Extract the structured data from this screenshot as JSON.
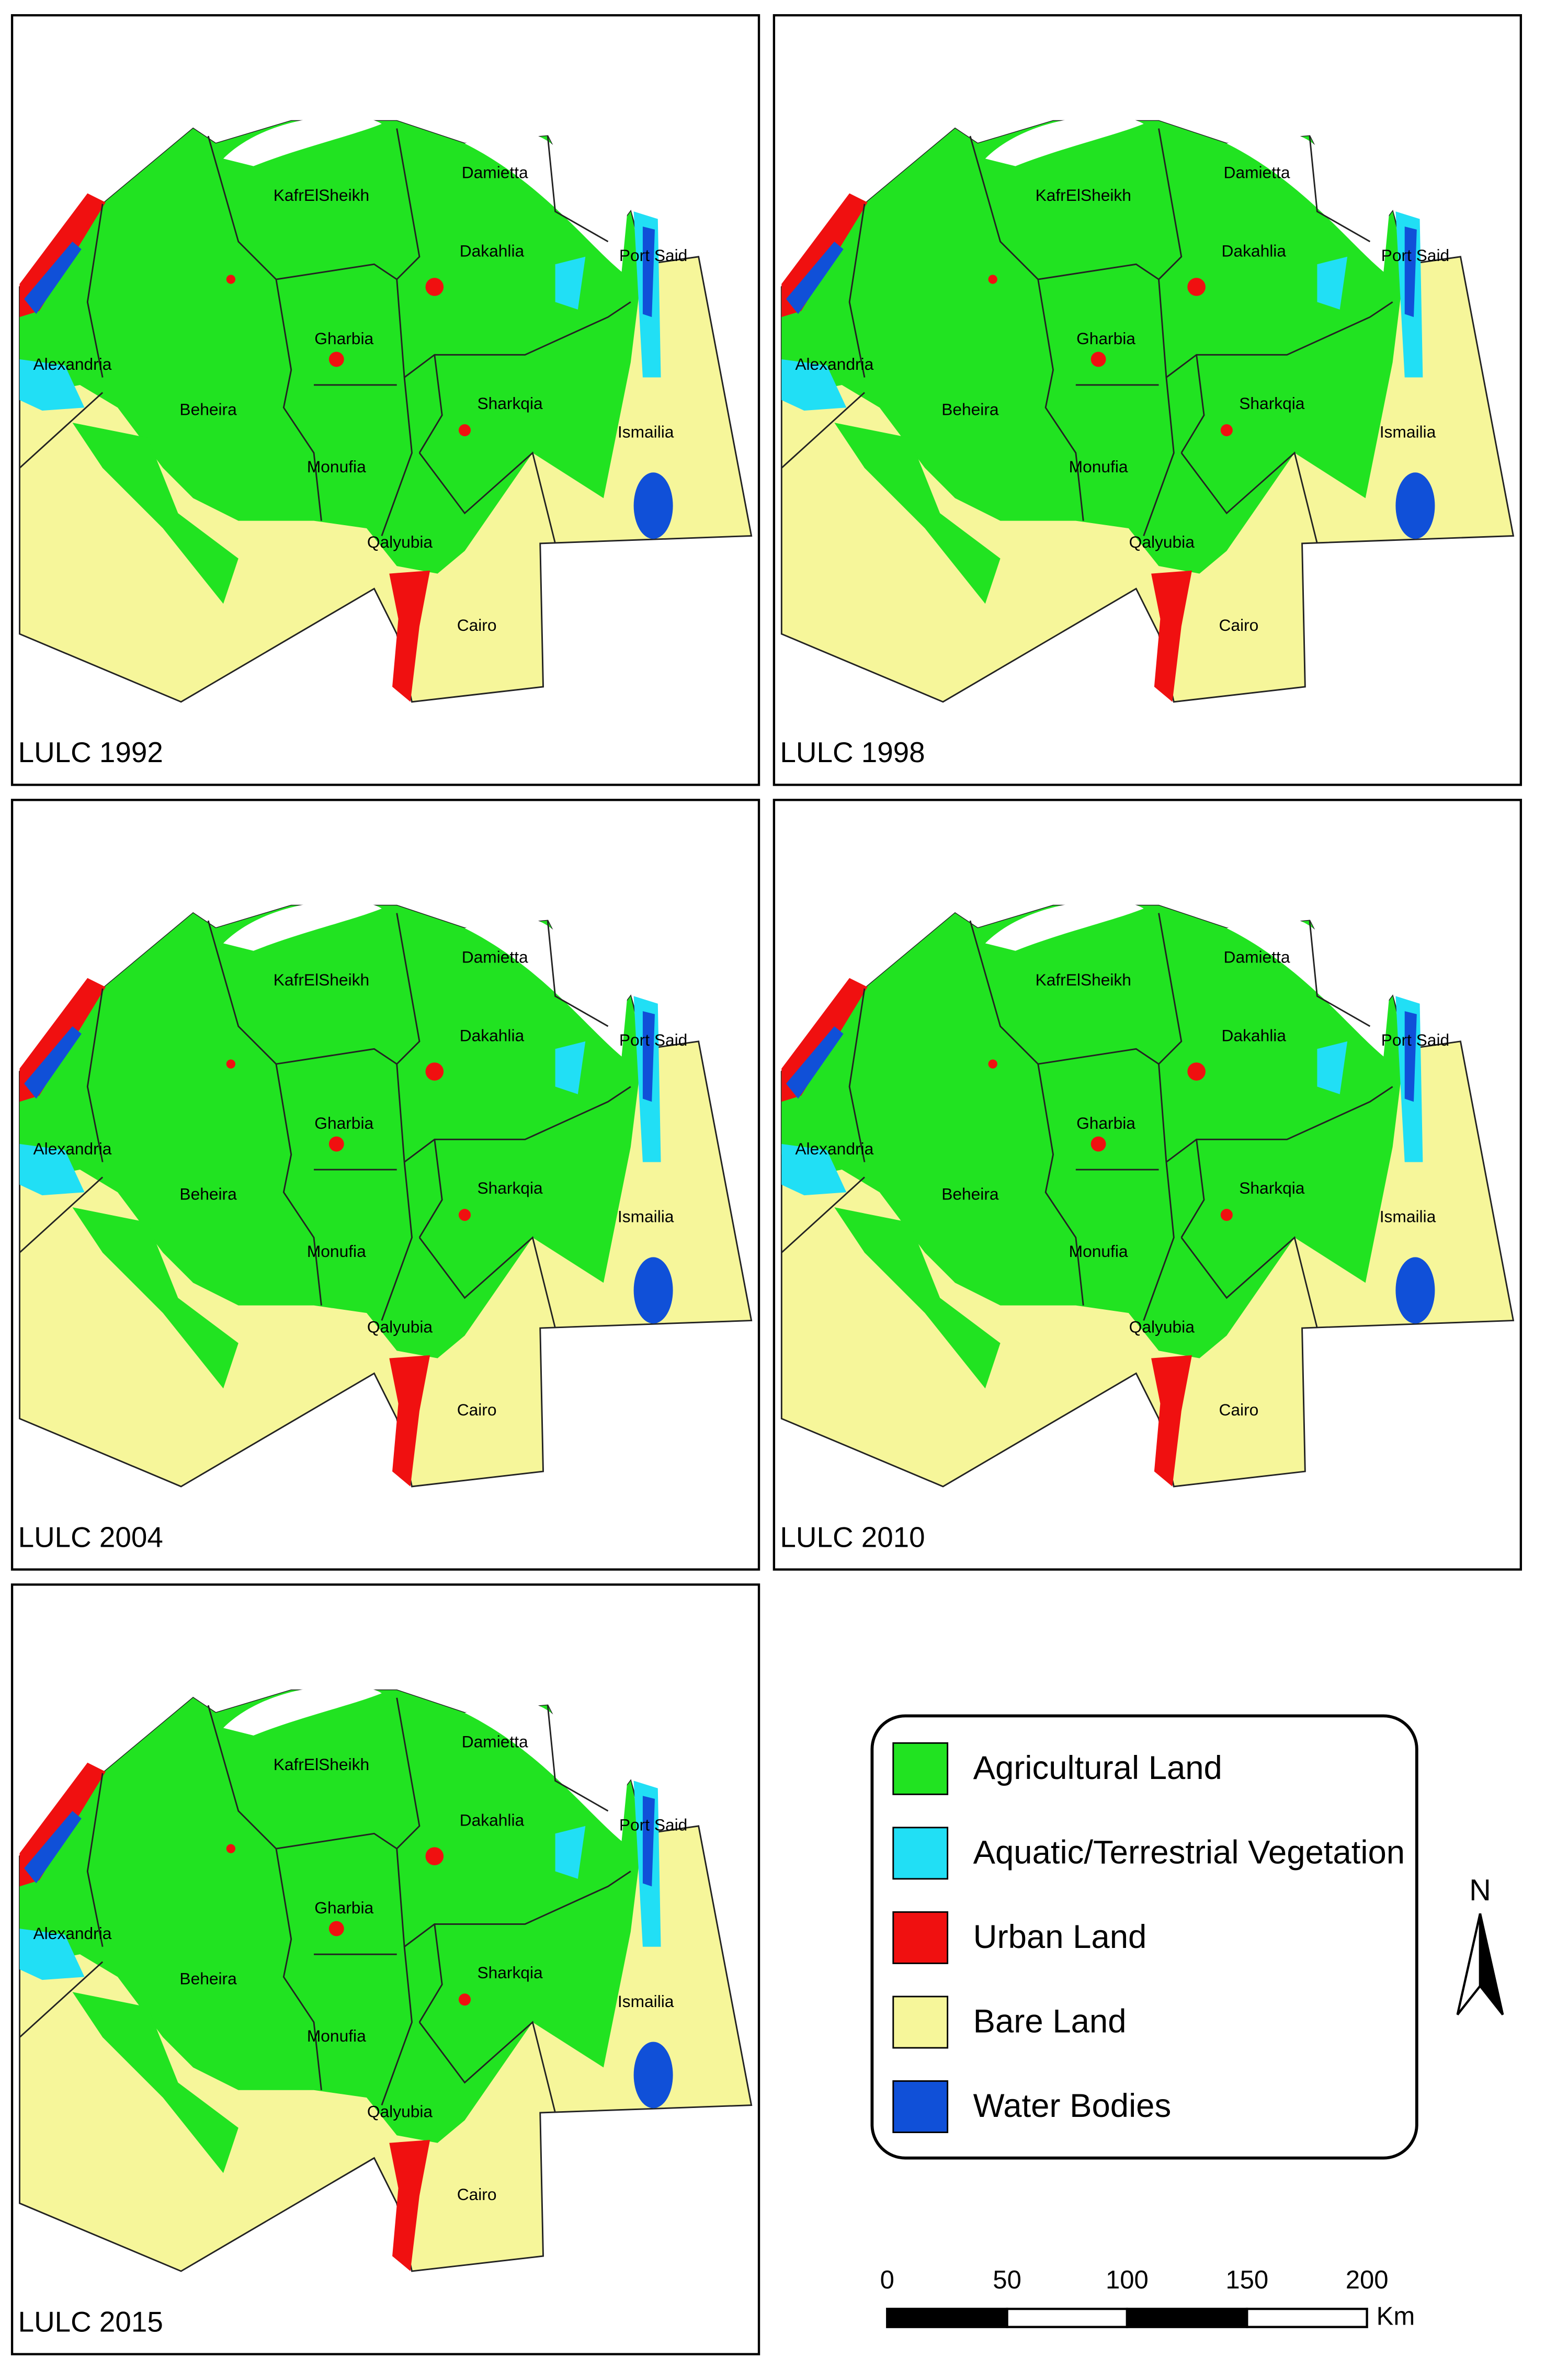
{
  "panels": [
    {
      "title": "LULC 1992"
    },
    {
      "title": "LULC 1998"
    },
    {
      "title": "LULC 2004"
    },
    {
      "title": "LULC 2010"
    },
    {
      "title": "LULC 2015"
    }
  ],
  "regions": [
    "Alexandria",
    "Beheira",
    "KafrElSheikh",
    "Damietta",
    "Dakahlia",
    "Port Said",
    "Gharbia",
    "Sharkqia",
    "Ismailia",
    "Monufia",
    "Qalyubia",
    "Cairo"
  ],
  "legend": {
    "items": [
      {
        "label": "Agricultural Land",
        "color": "#21e321"
      },
      {
        "label": "Aquatic/Terrestrial Vegetation",
        "color": "#21dff5"
      },
      {
        "label": "Urban Land",
        "color": "#f01010"
      },
      {
        "label": "Bare Land",
        "color": "#f6f69a"
      },
      {
        "label": "Water Bodies",
        "color": "#1050d8"
      }
    ]
  },
  "north": "N",
  "scale_bar": {
    "ticks": [
      0,
      50,
      100,
      150,
      200
    ],
    "unit": "Km"
  }
}
